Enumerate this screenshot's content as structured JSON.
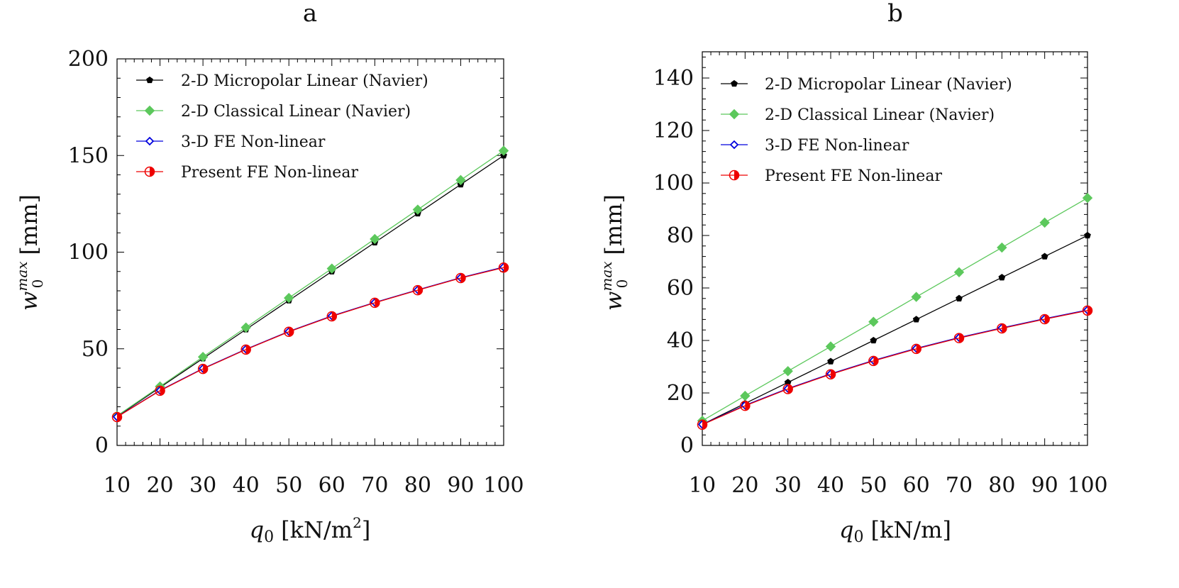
{
  "chart_data": [
    {
      "panel": "a",
      "type": "line",
      "title": "a",
      "xlabel": "q",
      "xlabel_sub": "0",
      "xlabel_unit": "[kN/m",
      "xlabel_unit_sup": "2",
      "xlabel_unit_end": "]",
      "ylabel": "w",
      "ylabel_sub": "0",
      "ylabel_sup": "max",
      "ylabel_unit": "[mm]",
      "xlim": [
        10,
        100
      ],
      "ylim": [
        0,
        200
      ],
      "xticks": [
        10,
        20,
        30,
        40,
        50,
        60,
        70,
        80,
        90,
        100
      ],
      "yticks": [
        0,
        50,
        100,
        150,
        200
      ],
      "x": [
        10,
        20,
        30,
        40,
        50,
        60,
        70,
        80,
        90,
        100
      ],
      "series": [
        {
          "name": "2-D Micropolar Linear (Navier)",
          "color": "#000000",
          "marker": "pentagon",
          "values": [
            15.0,
            30.0,
            45.0,
            60.0,
            75.0,
            90.0,
            105.0,
            120.0,
            135.0,
            150.0
          ]
        },
        {
          "name": "2-D Classical Linear (Navier)",
          "color": "#5cc85c",
          "marker": "diamond",
          "values": [
            15.3,
            30.5,
            45.8,
            61.0,
            76.3,
            91.5,
            106.8,
            122.0,
            137.3,
            152.5
          ]
        },
        {
          "name": "3-D FE Non-linear",
          "color": "#0000dd",
          "marker": "open-diamond",
          "values": [
            14.8,
            28.5,
            39.8,
            49.8,
            59.0,
            67.0,
            74.0,
            80.5,
            86.8,
            92.3
          ]
        },
        {
          "name": "Present FE Non-linear",
          "color": "#ee0000",
          "marker": "half-circle",
          "values": [
            14.7,
            28.3,
            39.6,
            49.6,
            58.8,
            66.8,
            73.8,
            80.3,
            86.6,
            92.0
          ]
        }
      ],
      "legend_position": "top-left"
    },
    {
      "panel": "b",
      "type": "line",
      "title": "b",
      "xlabel": "q",
      "xlabel_sub": "0",
      "xlabel_unit": "[kN/m]",
      "ylabel": "w",
      "ylabel_sub": "0",
      "ylabel_sup": "max",
      "ylabel_unit": "[mm]",
      "xlim": [
        10,
        100
      ],
      "ylim": [
        0,
        150
      ],
      "xticks": [
        10,
        20,
        30,
        40,
        50,
        60,
        70,
        80,
        90,
        100
      ],
      "yticks": [
        0,
        20,
        40,
        60,
        80,
        100,
        120,
        140
      ],
      "x": [
        10,
        20,
        30,
        40,
        50,
        60,
        70,
        80,
        90,
        100
      ],
      "series": [
        {
          "name": "2-D Micropolar Linear (Navier)",
          "color": "#000000",
          "marker": "pentagon",
          "values": [
            8.0,
            16.0,
            24.0,
            32.0,
            40.0,
            48.0,
            56.0,
            64.0,
            72.0,
            80.0
          ]
        },
        {
          "name": "2-D Classical Linear (Navier)",
          "color": "#5cc85c",
          "marker": "diamond",
          "values": [
            9.4,
            18.9,
            28.3,
            37.7,
            47.1,
            56.6,
            66.0,
            75.4,
            84.9,
            94.3
          ]
        },
        {
          "name": "3-D FE Non-linear",
          "color": "#0000dd",
          "marker": "open-diamond",
          "values": [
            8.0,
            15.3,
            21.7,
            27.3,
            32.4,
            37.0,
            41.1,
            44.8,
            48.3,
            51.6
          ]
        },
        {
          "name": "Present FE Non-linear",
          "color": "#ee0000",
          "marker": "half-circle",
          "values": [
            7.9,
            15.1,
            21.5,
            27.1,
            32.2,
            36.8,
            40.9,
            44.6,
            48.1,
            51.4
          ]
        }
      ],
      "legend_position": "top-left"
    }
  ]
}
